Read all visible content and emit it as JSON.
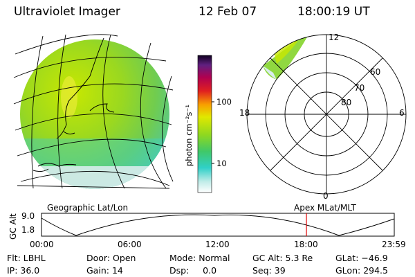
{
  "header": {
    "instrument": "Ultraviolet Imager",
    "date": "12 Feb 07",
    "time": "18:00:19 UT"
  },
  "colorbar": {
    "unit_label": "photon cm⁻²s⁻¹",
    "ticks": [
      "100",
      "10"
    ]
  },
  "polar_plot": {
    "mlt_labels": {
      "top": "12",
      "left": "18",
      "right": "6",
      "bottom": "0"
    },
    "mlat_labels": [
      "60",
      "70",
      "80"
    ]
  },
  "timeline": {
    "left_caption": "Geographic Lat/Lon",
    "right_caption": "Apex MLat/MLT",
    "axis_title": "GC Alt",
    "y_ticks": [
      "9.0",
      "1.8"
    ],
    "x_ticks": [
      "00:00",
      "06:00",
      "12:00",
      "18:00",
      "23:59"
    ],
    "current_marker_color": "#e00000"
  },
  "info": {
    "row1": [
      {
        "label": "Flt:",
        "value": "LBHL"
      },
      {
        "label": "Door:",
        "value": "Open"
      },
      {
        "label": "Mode:",
        "value": "Normal"
      },
      {
        "label": "GC Alt:",
        "value": "5.3 Re"
      },
      {
        "label": "GLat:",
        "value": "−46.9"
      }
    ],
    "row2": [
      {
        "label": "IP:",
        "value": "36.0"
      },
      {
        "label": "Gain:",
        "value": "14"
      },
      {
        "label": "Dsp:",
        "value": "0.0"
      },
      {
        "label": "Seq:",
        "value": "39"
      },
      {
        "label": "GLon:",
        "value": "294.5"
      }
    ]
  }
}
